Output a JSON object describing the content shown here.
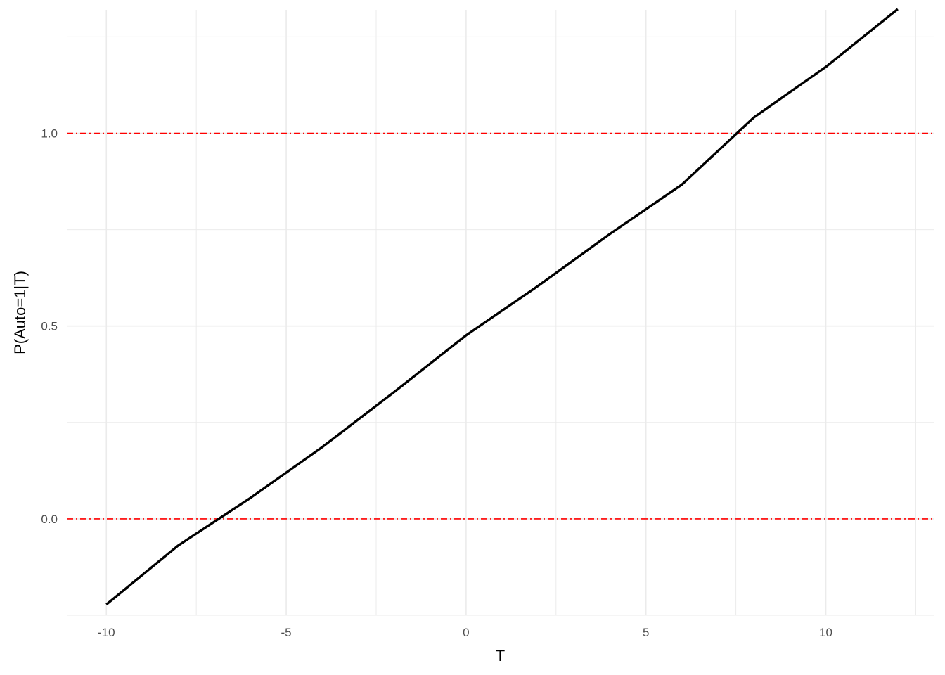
{
  "chart_data": {
    "type": "line",
    "title": "",
    "xlabel": "T",
    "ylabel": "P(Auto=1|T)",
    "xlim": [
      -11.1,
      13.0
    ],
    "ylim": [
      -0.25,
      1.32
    ],
    "x_ticks": [
      -10,
      -5,
      0,
      5,
      10
    ],
    "x_tick_labels": [
      "-10",
      "-5",
      "0",
      "5",
      "10"
    ],
    "y_ticks": [
      0.0,
      0.5,
      1.0
    ],
    "y_tick_labels": [
      "0.0",
      "0.5",
      "1.0"
    ],
    "grid": true,
    "legend": "none",
    "series": [
      {
        "color": "#000000",
        "x": [
          -10,
          -8,
          -6,
          -4,
          -2,
          0,
          2,
          4,
          6,
          8,
          10,
          12
        ],
        "y": [
          -0.222,
          -0.069,
          0.054,
          0.186,
          0.329,
          0.476,
          0.604,
          0.739,
          0.867,
          1.041,
          1.172,
          1.322
        ]
      }
    ],
    "reference_lines": [
      {
        "axis": "y",
        "value": 0.0,
        "color": "#ff0000",
        "style": "dotdash"
      },
      {
        "axis": "y",
        "value": 1.0,
        "color": "#ff0000",
        "style": "dotdash"
      }
    ],
    "colors": {
      "grid": "#ebebeb",
      "line": "#000000",
      "reference": "#ff0000"
    }
  }
}
